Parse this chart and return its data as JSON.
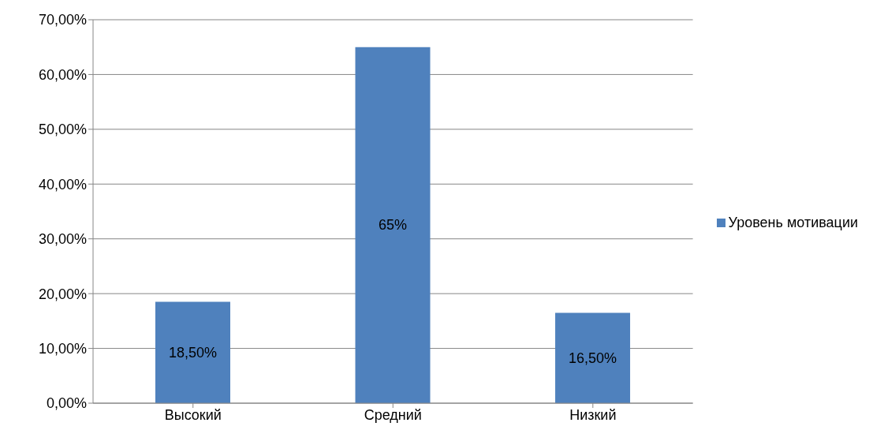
{
  "chart_data": {
    "type": "bar",
    "categories": [
      "Высокий",
      "Средний",
      "Низкий"
    ],
    "series": [
      {
        "name": "Уровень мотивации",
        "color": "#4f81bd",
        "values": [
          18.5,
          65,
          16.5
        ],
        "value_labels": [
          "18,50%",
          "65%",
          "16,50%"
        ]
      }
    ],
    "ylim": [
      0,
      70
    ],
    "yticks": [
      {
        "value": 0,
        "label": "0,00%"
      },
      {
        "value": 10,
        "label": "10,00%"
      },
      {
        "value": 20,
        "label": "20,00%"
      },
      {
        "value": 30,
        "label": "30,00%"
      },
      {
        "value": 40,
        "label": "40,00%"
      },
      {
        "value": 50,
        "label": "50,00%"
      },
      {
        "value": 60,
        "label": "60,00%"
      },
      {
        "value": 70,
        "label": "70,00%"
      }
    ],
    "grid": "y",
    "legend": "right"
  }
}
